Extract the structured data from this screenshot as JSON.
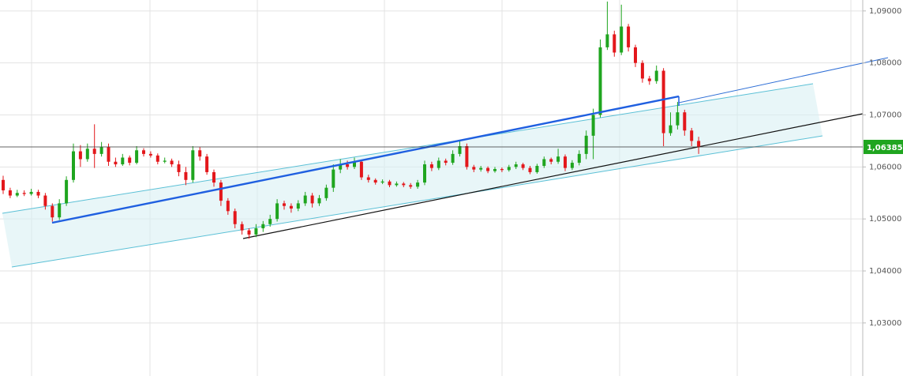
{
  "chart_data": {
    "type": "candlestick",
    "up_color": "#1fa51f",
    "down_color": "#e3171b",
    "ylim": [
      1.0198,
      1.0921
    ],
    "yticks": [
      {
        "value": 1.03,
        "label": "1,03000"
      },
      {
        "value": 1.04,
        "label": "1,04000"
      },
      {
        "value": 1.05,
        "label": "1,05000"
      },
      {
        "value": 1.06,
        "label": "1,06000"
      },
      {
        "value": 1.07,
        "label": "1,07000"
      },
      {
        "value": 1.08,
        "label": "1,08000"
      },
      {
        "value": 1.09,
        "label": "1,09000"
      }
    ],
    "grid": true,
    "last_price": 1.06385,
    "last_price_label": "1,06385",
    "last_price_color": "#1fa51f",
    "open": [
      1.0575,
      1.0555,
      1.0545,
      1.055,
      1.0548,
      1.0552,
      1.0545,
      1.0525,
      1.0503,
      1.053,
      1.0575,
      1.063,
      1.0615,
      1.0635,
      1.0625,
      1.0638,
      1.061,
      1.0605,
      1.0618,
      1.0608,
      1.0632,
      1.0625,
      1.0622,
      1.061,
      1.0612,
      1.0605,
      1.059,
      1.0575,
      1.0632,
      1.062,
      1.059,
      1.057,
      1.0535,
      1.0515,
      1.049,
      1.0478,
      1.047,
      1.0482,
      1.049,
      1.05,
      1.053,
      1.0525,
      1.052,
      1.053,
      1.0545,
      1.053,
      1.054,
      1.056,
      1.0595,
      1.0605,
      1.06,
      1.061,
      1.058,
      1.0575,
      1.057,
      1.0572,
      1.0565,
      1.0568,
      1.0565,
      1.0562,
      1.057,
      1.0605,
      1.0598,
      1.0612,
      1.0608,
      1.0625,
      1.064,
      1.06,
      1.0595,
      1.0598,
      1.0592,
      1.0596,
      1.0594,
      1.06,
      1.0605,
      1.0598,
      1.059,
      1.0602,
      1.0615,
      1.061,
      1.062,
      1.0598,
      1.0608,
      1.0625,
      1.066,
      1.07,
      1.083,
      1.0855,
      1.082,
      1.087,
      1.083,
      1.08,
      1.077,
      1.0765,
      1.0785,
      1.0665,
      1.068,
      1.0705,
      1.067,
      1.065
    ],
    "high": [
      1.0583,
      1.056,
      1.0556,
      1.0555,
      1.0558,
      1.0556,
      1.055,
      1.053,
      1.0538,
      1.0582,
      1.0645,
      1.0642,
      1.0645,
      1.0682,
      1.0648,
      1.0645,
      1.0618,
      1.0625,
      1.0622,
      1.064,
      1.0636,
      1.063,
      1.0626,
      1.0618,
      1.0616,
      1.0612,
      1.06,
      1.064,
      1.0638,
      1.0625,
      1.0595,
      1.0575,
      1.054,
      1.052,
      1.0495,
      1.0482,
      1.049,
      1.0496,
      1.0508,
      1.0538,
      1.0535,
      1.053,
      1.0536,
      1.0552,
      1.055,
      1.0546,
      1.0566,
      1.0605,
      1.0615,
      1.0612,
      1.0618,
      1.0614,
      1.0585,
      1.0578,
      1.0576,
      1.0575,
      1.0572,
      1.0571,
      1.0569,
      1.0575,
      1.0612,
      1.061,
      1.0618,
      1.0616,
      1.0632,
      1.065,
      1.0645,
      1.0604,
      1.0602,
      1.0601,
      1.06,
      1.0599,
      1.0604,
      1.061,
      1.0608,
      1.0602,
      1.0606,
      1.062,
      1.0618,
      1.0635,
      1.0624,
      1.0613,
      1.0632,
      1.067,
      1.0712,
      1.0845,
      1.0918,
      1.0862,
      1.0912,
      1.0875,
      1.0835,
      1.0805,
      1.0775,
      1.0795,
      1.079,
      1.0705,
      1.0725,
      1.071,
      1.0675,
      1.0658
    ],
    "low": [
      1.0548,
      1.054,
      1.0542,
      1.0544,
      1.0545,
      1.054,
      1.0518,
      1.0495,
      1.0498,
      1.0525,
      1.057,
      1.06,
      1.061,
      1.0598,
      1.062,
      1.0602,
      1.06,
      1.0602,
      1.0603,
      1.0605,
      1.062,
      1.0618,
      1.0605,
      1.0607,
      1.06,
      1.0582,
      1.0565,
      1.057,
      1.0612,
      1.0585,
      1.0562,
      1.0525,
      1.0508,
      1.0482,
      1.047,
      1.0462,
      1.0465,
      1.0475,
      1.0485,
      1.0495,
      1.0518,
      1.0512,
      1.0515,
      1.0525,
      1.0522,
      1.0525,
      1.0535,
      1.0552,
      1.0588,
      1.0595,
      1.0596,
      1.0575,
      1.057,
      1.0566,
      1.0567,
      1.0561,
      1.0562,
      1.0561,
      1.0558,
      1.0558,
      1.0565,
      1.0592,
      1.0594,
      1.0603,
      1.0604,
      1.062,
      1.0595,
      1.059,
      1.0591,
      1.0588,
      1.0589,
      1.059,
      1.0591,
      1.0596,
      1.0594,
      1.0586,
      1.0587,
      1.0598,
      1.0605,
      1.0606,
      1.0592,
      1.0594,
      1.0603,
      1.0615,
      1.0615,
      1.0695,
      1.0825,
      1.0812,
      1.0815,
      1.0822,
      1.0792,
      1.0762,
      1.0758,
      1.076,
      1.064,
      1.066,
      1.0672,
      1.066,
      1.064,
      1.0625
    ],
    "close": [
      1.0555,
      1.0545,
      1.055,
      1.0548,
      1.0552,
      1.0545,
      1.0525,
      1.0503,
      1.053,
      1.0575,
      1.063,
      1.0615,
      1.0635,
      1.0625,
      1.0638,
      1.061,
      1.0605,
      1.0618,
      1.0608,
      1.0632,
      1.0625,
      1.0622,
      1.061,
      1.0612,
      1.0605,
      1.059,
      1.0575,
      1.0632,
      1.062,
      1.059,
      1.057,
      1.0535,
      1.0515,
      1.049,
      1.0478,
      1.047,
      1.0482,
      1.049,
      1.05,
      1.053,
      1.0525,
      1.052,
      1.053,
      1.0545,
      1.053,
      1.054,
      1.056,
      1.0595,
      1.0605,
      1.06,
      1.061,
      1.058,
      1.0575,
      1.057,
      1.0572,
      1.0565,
      1.0568,
      1.0565,
      1.0562,
      1.057,
      1.0605,
      1.0598,
      1.0612,
      1.0608,
      1.0625,
      1.064,
      1.06,
      1.0595,
      1.0598,
      1.0592,
      1.0596,
      1.0594,
      1.06,
      1.0605,
      1.0598,
      1.059,
      1.0602,
      1.0615,
      1.061,
      1.062,
      1.0598,
      1.0608,
      1.0625,
      1.066,
      1.07,
      1.083,
      1.0855,
      1.082,
      1.087,
      1.083,
      1.08,
      1.077,
      1.0765,
      1.0785,
      1.0665,
      1.068,
      1.0705,
      1.067,
      1.065,
      1.0638
    ]
  }
}
